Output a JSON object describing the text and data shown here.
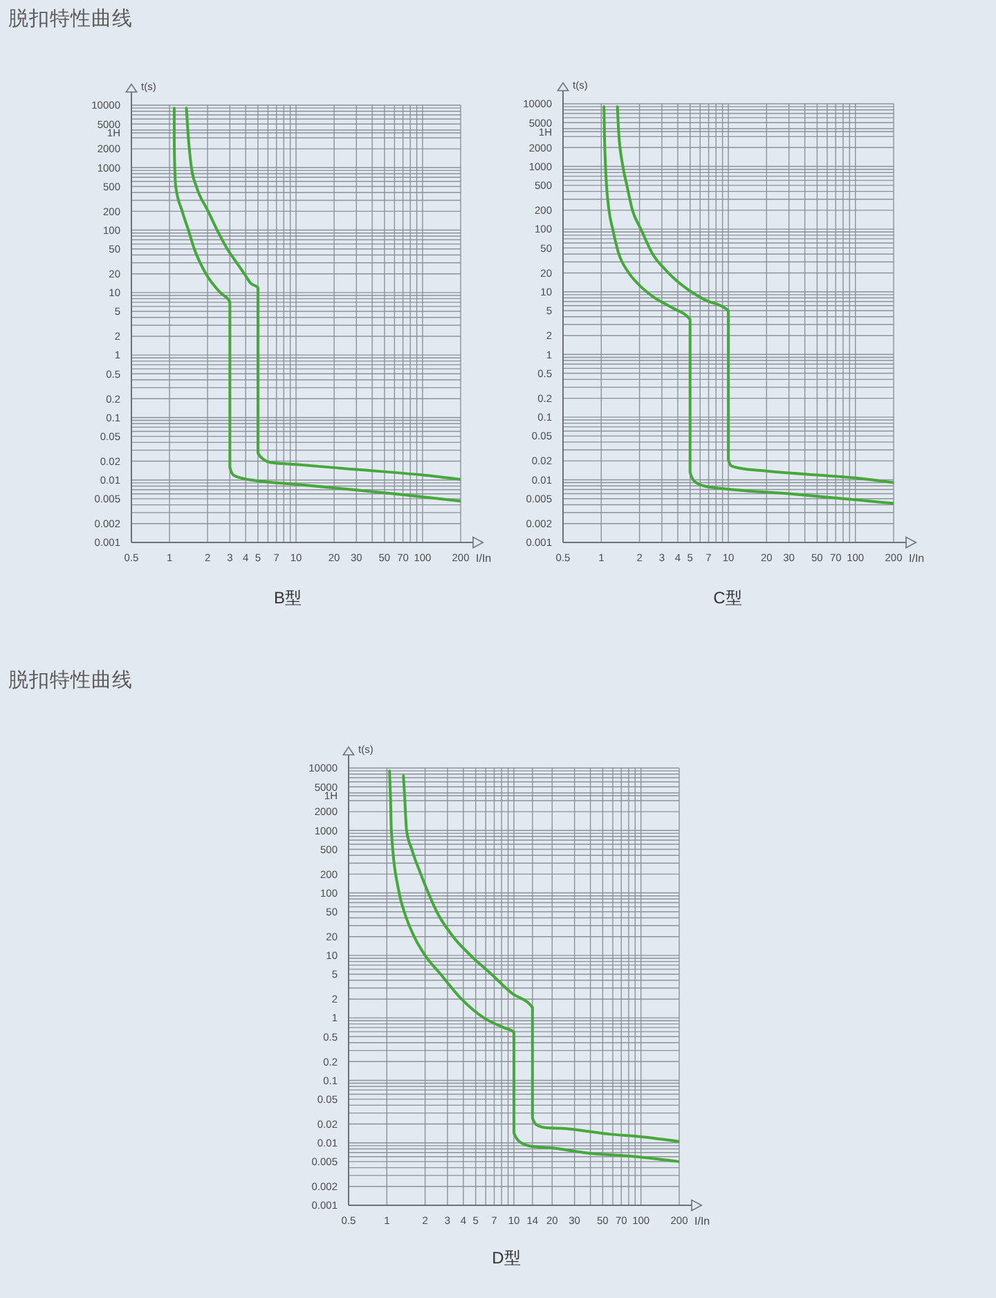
{
  "chart_data": [
    {
      "type": "line",
      "title": "B型",
      "xlabel": "I/In",
      "ylabel": "t(s)",
      "annotations": [
        "脱扣特性曲线"
      ],
      "log": "xy",
      "grid": true,
      "xlim": [
        0.5,
        200
      ],
      "ylim": [
        0.001,
        10000
      ],
      "xticks": [
        0.5,
        1,
        2,
        3,
        4,
        5,
        {
          "value": 6,
          "label": null
        },
        7,
        {
          "value": 8,
          "label": null
        },
        {
          "value": 9,
          "label": null
        },
        10,
        20,
        30,
        {
          "value": 40,
          "label": null
        },
        50,
        {
          "value": 60,
          "label": null
        },
        70,
        {
          "value": 80,
          "label": null
        },
        {
          "value": 90,
          "label": null
        },
        100,
        200
      ],
      "yticks": [
        0.001,
        0.002,
        {
          "value": 0.003,
          "label": null
        },
        {
          "value": 0.004,
          "label": null
        },
        0.005,
        {
          "value": 0.006,
          "label": null
        },
        {
          "value": 0.007,
          "label": null
        },
        {
          "value": 0.008,
          "label": null
        },
        {
          "value": 0.009,
          "label": null
        },
        0.01,
        0.02,
        {
          "value": 0.03,
          "label": null
        },
        {
          "value": 0.04,
          "label": null
        },
        0.05,
        {
          "value": 0.06,
          "label": null
        },
        {
          "value": 0.07,
          "label": null
        },
        {
          "value": 0.08,
          "label": null
        },
        {
          "value": 0.09,
          "label": null
        },
        0.1,
        0.2,
        {
          "value": 0.3,
          "label": null
        },
        {
          "value": 0.4,
          "label": null
        },
        0.5,
        {
          "value": 0.6,
          "label": null
        },
        {
          "value": 0.7,
          "label": null
        },
        {
          "value": 0.8,
          "label": null
        },
        {
          "value": 0.9,
          "label": null
        },
        1,
        2,
        {
          "value": 3,
          "label": null
        },
        {
          "value": 4,
          "label": null
        },
        5,
        {
          "value": 6,
          "label": null
        },
        {
          "value": 7,
          "label": null
        },
        {
          "value": 8,
          "label": null
        },
        {
          "value": 9,
          "label": null
        },
        10,
        20,
        {
          "value": 30,
          "label": null
        },
        {
          "value": 40,
          "label": null
        },
        50,
        {
          "value": 60,
          "label": null
        },
        {
          "value": 70,
          "label": null
        },
        {
          "value": 80,
          "label": null
        },
        {
          "value": 90,
          "label": null
        },
        100,
        200,
        {
          "value": 300,
          "label": null
        },
        {
          "value": 400,
          "label": null
        },
        500,
        {
          "value": 600,
          "label": null
        },
        {
          "value": 700,
          "label": null
        },
        {
          "value": 800,
          "label": null
        },
        {
          "value": 900,
          "label": null
        },
        1000,
        2000,
        {
          "value": 3000,
          "label": null
        },
        {
          "value": 4000,
          "label": null
        },
        5000,
        {
          "value": 6000,
          "label": null
        },
        {
          "value": 7000,
          "label": null
        },
        {
          "value": 8000,
          "label": null
        },
        {
          "value": 9000,
          "label": null
        },
        10000
      ],
      "ref_lines": [
        {
          "axis": "y",
          "value": 3600,
          "label": "1H"
        }
      ],
      "series": [
        {
          "color": "#44a83b",
          "x": [
            1.09,
            1.09,
            1.1,
            1.12,
            1.26,
            1.41,
            1.57,
            1.94,
            2.52,
            3,
            3,
            3.2,
            3.8,
            5,
            10,
            30,
            70,
            200
          ],
          "values": [
            9000,
            3000,
            1000,
            500,
            200,
            100,
            50,
            20,
            10,
            7.1,
            0.016,
            0.012,
            0.0106,
            0.0097,
            0.0085,
            0.0069,
            0.0058,
            0.0046
          ]
        },
        {
          "color": "#44a83b",
          "x": [
            1.36,
            1.4,
            1.49,
            1.63,
            2.02,
            2.38,
            2.86,
            3.4,
            3.9,
            4.4,
            5,
            5,
            5.6,
            6.3,
            10,
            30,
            100,
            200
          ],
          "values": [
            9000,
            3600,
            1000,
            500,
            200,
            100,
            50,
            30,
            20,
            14,
            12,
            0.027,
            0.021,
            0.019,
            0.0177,
            0.0147,
            0.012,
            0.0102
          ]
        }
      ]
    },
    {
      "type": "line",
      "title": "C型",
      "xlabel": "I/In",
      "ylabel": "t(s)",
      "log": "xy",
      "grid": true,
      "xlim": [
        0.5,
        200
      ],
      "ylim": [
        0.001,
        10000
      ],
      "xticks": [
        0.5,
        1,
        2,
        3,
        4,
        5,
        {
          "value": 6,
          "label": null
        },
        7,
        {
          "value": 8,
          "label": null
        },
        {
          "value": 9,
          "label": null
        },
        10,
        20,
        30,
        {
          "value": 40,
          "label": null
        },
        50,
        {
          "value": 60,
          "label": null
        },
        70,
        {
          "value": 80,
          "label": null
        },
        {
          "value": 90,
          "label": null
        },
        100,
        200
      ],
      "yticks": [
        0.001,
        0.002,
        {
          "value": 0.003,
          "label": null
        },
        {
          "value": 0.004,
          "label": null
        },
        0.005,
        {
          "value": 0.006,
          "label": null
        },
        {
          "value": 0.007,
          "label": null
        },
        {
          "value": 0.008,
          "label": null
        },
        {
          "value": 0.009,
          "label": null
        },
        0.01,
        0.02,
        {
          "value": 0.03,
          "label": null
        },
        {
          "value": 0.04,
          "label": null
        },
        0.05,
        {
          "value": 0.06,
          "label": null
        },
        {
          "value": 0.07,
          "label": null
        },
        {
          "value": 0.08,
          "label": null
        },
        {
          "value": 0.09,
          "label": null
        },
        0.1,
        0.2,
        {
          "value": 0.3,
          "label": null
        },
        {
          "value": 0.4,
          "label": null
        },
        0.5,
        {
          "value": 0.6,
          "label": null
        },
        {
          "value": 0.7,
          "label": null
        },
        {
          "value": 0.8,
          "label": null
        },
        {
          "value": 0.9,
          "label": null
        },
        1,
        2,
        {
          "value": 3,
          "label": null
        },
        {
          "value": 4,
          "label": null
        },
        5,
        {
          "value": 6,
          "label": null
        },
        {
          "value": 7,
          "label": null
        },
        {
          "value": 8,
          "label": null
        },
        {
          "value": 9,
          "label": null
        },
        10,
        20,
        {
          "value": 30,
          "label": null
        },
        {
          "value": 40,
          "label": null
        },
        50,
        {
          "value": 60,
          "label": null
        },
        {
          "value": 70,
          "label": null
        },
        {
          "value": 80,
          "label": null
        },
        {
          "value": 90,
          "label": null
        },
        100,
        200,
        {
          "value": 300,
          "label": null
        },
        {
          "value": 400,
          "label": null
        },
        500,
        {
          "value": 600,
          "label": null
        },
        {
          "value": 700,
          "label": null
        },
        {
          "value": 800,
          "label": null
        },
        {
          "value": 900,
          "label": null
        },
        1000,
        2000,
        {
          "value": 3000,
          "label": null
        },
        {
          "value": 4000,
          "label": null
        },
        5000,
        {
          "value": 6000,
          "label": null
        },
        {
          "value": 7000,
          "label": null
        },
        {
          "value": 8000,
          "label": null
        },
        {
          "value": 9000,
          "label": null
        },
        10000
      ],
      "ref_lines": [
        {
          "axis": "y",
          "value": 3600,
          "label": "1H"
        }
      ],
      "series": [
        {
          "color": "#44a83b",
          "x": [
            1.05,
            1.06,
            1.08,
            1.1,
            1.15,
            1.23,
            1.37,
            1.62,
            2,
            2.57,
            3.6,
            5,
            5,
            5.4,
            6.4,
            10,
            30,
            100,
            200
          ],
          "values": [
            9000,
            3000,
            1000,
            500,
            200,
            100,
            41,
            21,
            12.7,
            8.3,
            5.6,
            3.6,
            0.0133,
            0.0095,
            0.008,
            0.0071,
            0.006,
            0.0048,
            0.0042
          ]
        },
        {
          "color": "#44a83b",
          "x": [
            1.34,
            1.37,
            1.48,
            1.59,
            1.76,
            2.05,
            2.52,
            3.3,
            4.6,
            6.4,
            10,
            10,
            10.6,
            12,
            20,
            50,
            100,
            200
          ],
          "values": [
            9000,
            3600,
            1000,
            500,
            200,
            100,
            41,
            21,
            11.6,
            7.6,
            5,
            0.021,
            0.0166,
            0.0155,
            0.0138,
            0.0119,
            0.0107,
            0.009
          ]
        }
      ]
    },
    {
      "type": "line",
      "title": "D型",
      "xlabel": "I/In",
      "ylabel": "t(s)",
      "annotations": [
        "脱扣特性曲线"
      ],
      "log": "xy",
      "grid": true,
      "xlim": [
        0.5,
        200
      ],
      "ylim": [
        0.001,
        10000
      ],
      "xticks": [
        0.5,
        1,
        2,
        3,
        4,
        5,
        {
          "value": 6,
          "label": null
        },
        7,
        {
          "value": 8,
          "label": null
        },
        {
          "value": 9,
          "label": null
        },
        10,
        14,
        20,
        30,
        {
          "value": 40,
          "label": null
        },
        50,
        {
          "value": 60,
          "label": null
        },
        70,
        {
          "value": 80,
          "label": null
        },
        {
          "value": 90,
          "label": null
        },
        100,
        200
      ],
      "yticks": [
        0.001,
        0.002,
        {
          "value": 0.003,
          "label": null
        },
        {
          "value": 0.004,
          "label": null
        },
        0.005,
        {
          "value": 0.006,
          "label": null
        },
        {
          "value": 0.007,
          "label": null
        },
        {
          "value": 0.008,
          "label": null
        },
        {
          "value": 0.009,
          "label": null
        },
        0.01,
        0.02,
        {
          "value": 0.03,
          "label": null
        },
        {
          "value": 0.04,
          "label": null
        },
        0.05,
        {
          "value": 0.06,
          "label": null
        },
        {
          "value": 0.07,
          "label": null
        },
        {
          "value": 0.08,
          "label": null
        },
        {
          "value": 0.09,
          "label": null
        },
        0.1,
        0.2,
        {
          "value": 0.3,
          "label": null
        },
        {
          "value": 0.4,
          "label": null
        },
        0.5,
        {
          "value": 0.6,
          "label": null
        },
        {
          "value": 0.7,
          "label": null
        },
        {
          "value": 0.8,
          "label": null
        },
        {
          "value": 0.9,
          "label": null
        },
        1,
        2,
        {
          "value": 3,
          "label": null
        },
        {
          "value": 4,
          "label": null
        },
        5,
        {
          "value": 6,
          "label": null
        },
        {
          "value": 7,
          "label": null
        },
        {
          "value": 8,
          "label": null
        },
        {
          "value": 9,
          "label": null
        },
        10,
        20,
        {
          "value": 30,
          "label": null
        },
        {
          "value": 40,
          "label": null
        },
        50,
        {
          "value": 60,
          "label": null
        },
        {
          "value": 70,
          "label": null
        },
        {
          "value": 80,
          "label": null
        },
        {
          "value": 90,
          "label": null
        },
        100,
        200,
        {
          "value": 300,
          "label": null
        },
        {
          "value": 400,
          "label": null
        },
        500,
        {
          "value": 600,
          "label": null
        },
        {
          "value": 700,
          "label": null
        },
        {
          "value": 800,
          "label": null
        },
        {
          "value": 900,
          "label": null
        },
        1000,
        2000,
        {
          "value": 3000,
          "label": null
        },
        {
          "value": 4000,
          "label": null
        },
        5000,
        {
          "value": 6000,
          "label": null
        },
        {
          "value": 7000,
          "label": null
        },
        {
          "value": 8000,
          "label": null
        },
        {
          "value": 9000,
          "label": null
        },
        10000
      ],
      "ref_lines": [
        {
          "axis": "y",
          "value": 3600,
          "label": "1H"
        }
      ],
      "series": [
        {
          "color": "#44a83b",
          "x": [
            1.05,
            1.07,
            1.085,
            1.25,
            1.37,
            1.64,
            2,
            2.65,
            3.87,
            5.8,
            8.3,
            10,
            10,
            11.4,
            13.7,
            19.7,
            35,
            100,
            200
          ],
          "values": [
            9000,
            3000,
            1000,
            100,
            50,
            20,
            10,
            5,
            2,
            1,
            0.7,
            0.59,
            0.0144,
            0.01,
            0.0088,
            0.0083,
            0.007,
            0.0059,
            0.005
          ]
        },
        {
          "color": "#44a83b",
          "x": [
            1.35,
            1.38,
            1.43,
            1.57,
            1.85,
            2.12,
            2.47,
            3.32,
            4.56,
            6.65,
            9.6,
            14,
            14,
            15.3,
            18,
            23.5,
            58,
            100,
            200
          ],
          "values": [
            7500,
            3600,
            1000,
            500,
            200,
            100,
            50,
            20,
            10,
            5,
            2.5,
            1.47,
            0.025,
            0.019,
            0.0174,
            0.0171,
            0.0137,
            0.0125,
            0.0105
          ]
        }
      ]
    }
  ]
}
